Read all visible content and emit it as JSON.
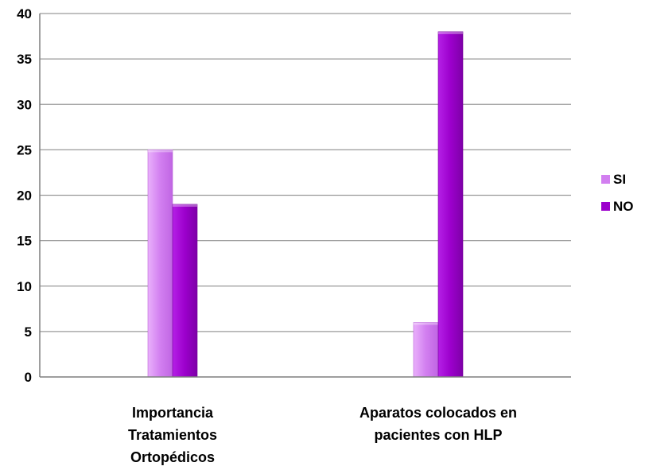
{
  "chart_data": {
    "type": "bar",
    "categories": [
      [
        "Importancia",
        "Tratamientos",
        "Ortopédicos"
      ],
      [
        "Aparatos colocados en",
        "pacientes con HLP"
      ]
    ],
    "series": [
      {
        "name": "SI",
        "values": [
          25,
          6
        ]
      },
      {
        "name": "NO",
        "values": [
          19,
          38
        ]
      }
    ],
    "yticks": [
      "0",
      "5",
      "10",
      "15",
      "20",
      "25",
      "30",
      "35",
      "40"
    ],
    "ylim": [
      0,
      40
    ],
    "grid": true,
    "legend": "right",
    "colors": {
      "SI": "#d27ff0",
      "NO": "#9c00cc"
    }
  }
}
